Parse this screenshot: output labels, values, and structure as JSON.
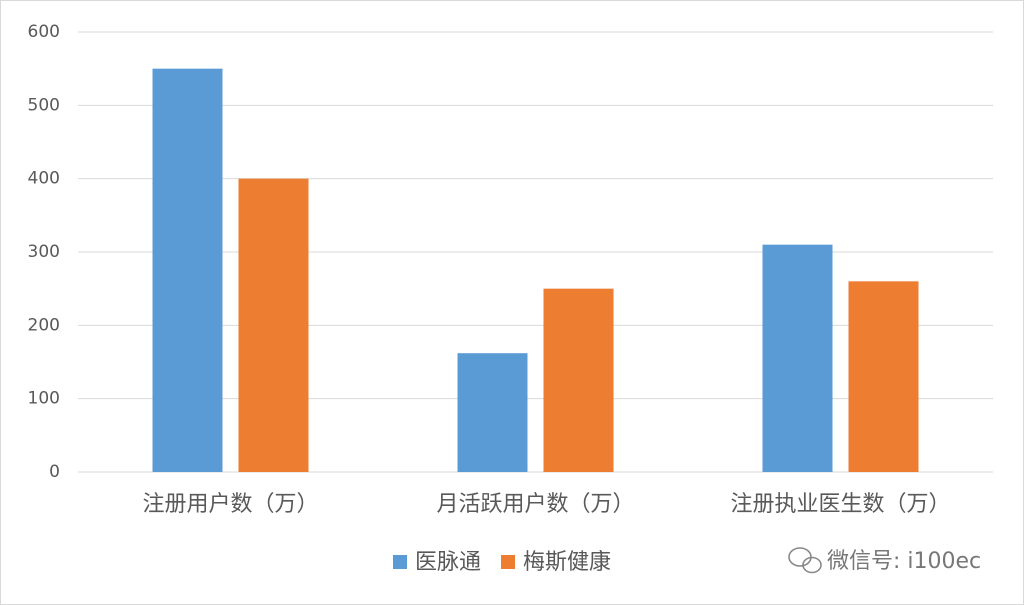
{
  "chart_data": {
    "type": "bar",
    "categories": [
      "注册用户数（万）",
      "月活跃用户数（万）",
      "注册执业医生数（万）"
    ],
    "series": [
      {
        "name": "医脉通",
        "color": "#5b9bd5",
        "values": [
          550,
          162,
          310
        ]
      },
      {
        "name": "梅斯健康",
        "color": "#ed7d31",
        "values": [
          400,
          250,
          260
        ]
      }
    ],
    "ylim": [
      0,
      600
    ],
    "yticks": [
      0,
      100,
      200,
      300,
      400,
      500,
      600
    ],
    "grid": true,
    "legend": "bottom",
    "watermark": "微信号: i100ec"
  }
}
